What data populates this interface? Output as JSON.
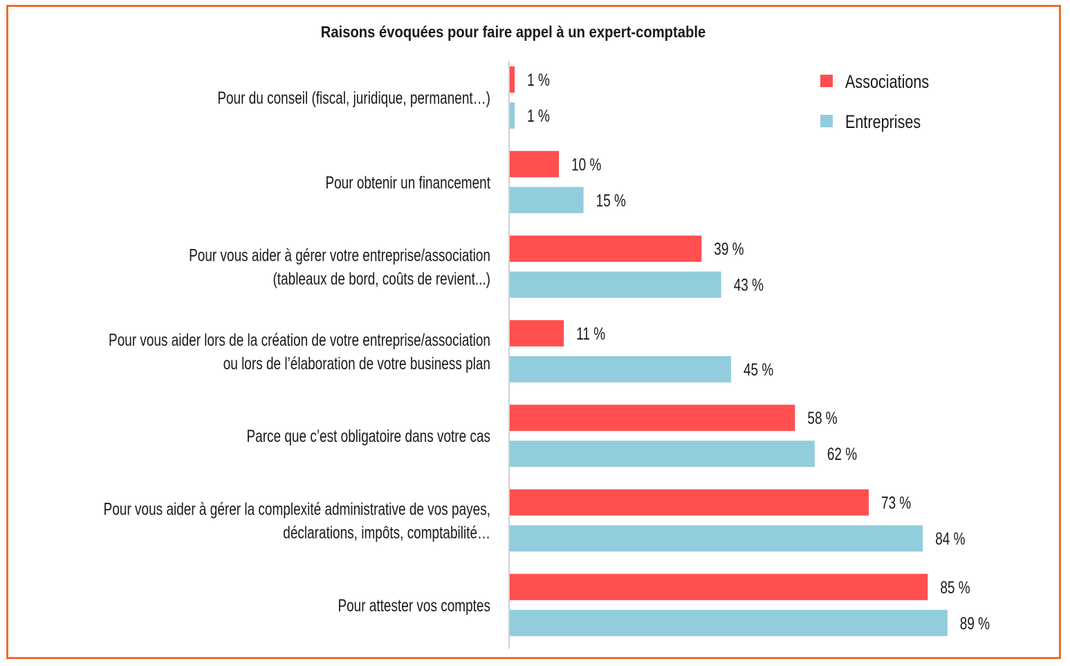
{
  "chart_data": {
    "type": "bar",
    "orientation": "horizontal",
    "title": "Raisons évoquées pour faire appel à un expert-comptable",
    "categories": [
      [
        "Pour du conseil (fiscal, juridique, permanent…)"
      ],
      [
        "Pour obtenir un financement"
      ],
      [
        "Pour vous aider à gérer votre entreprise/association",
        "(tableaux de bord, coûts de revient...)"
      ],
      [
        "Pour vous aider lors de la création de votre entreprise/association",
        "ou lors de l’élaboration de votre business plan"
      ],
      [
        "Parce que c’est obligatoire dans votre cas"
      ],
      [
        "Pour vous aider à gérer la complexité administrative de vos payes,",
        "déclarations, impôts, comptabilité…"
      ],
      [
        "Pour attester vos comptes"
      ]
    ],
    "series": [
      {
        "name": "Associations",
        "color": "#ff4f4f",
        "values": [
          1,
          10,
          39,
          11,
          58,
          73,
          85
        ]
      },
      {
        "name": "Entreprises",
        "color": "#92cddd",
        "values": [
          1,
          15,
          43,
          45,
          62,
          84,
          89
        ]
      }
    ],
    "value_suffix": " %",
    "legend": "top-right",
    "grid": false,
    "xlim": [
      0,
      100
    ]
  }
}
